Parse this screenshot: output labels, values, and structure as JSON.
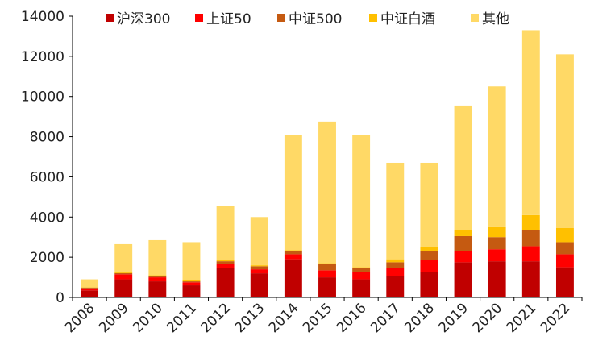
{
  "chart_data": {
    "type": "bar",
    "stacked": true,
    "title": "",
    "xlabel": "",
    "ylabel": "",
    "ylim": [
      0,
      14000
    ],
    "yticks": [
      0,
      2000,
      4000,
      6000,
      8000,
      10000,
      12000,
      14000
    ],
    "grid": false,
    "legend_position": "top",
    "categories": [
      "2008",
      "2009",
      "2010",
      "2011",
      "2012",
      "2013",
      "2014",
      "2015",
      "2016",
      "2017",
      "2018",
      "2019",
      "2020",
      "2021",
      "2022"
    ],
    "series": [
      {
        "name": "沪深300",
        "color": "#c00000",
        "values": [
          350,
          900,
          800,
          600,
          1450,
          1200,
          1900,
          1000,
          900,
          1050,
          1250,
          1750,
          1800,
          1800,
          1500
        ]
      },
      {
        "name": "上证50",
        "color": "#ff0000",
        "values": [
          100,
          250,
          200,
          150,
          200,
          200,
          250,
          350,
          350,
          400,
          600,
          550,
          600,
          750,
          650
        ]
      },
      {
        "name": "中证500",
        "color": "#c55a11",
        "values": [
          40,
          60,
          50,
          50,
          150,
          150,
          150,
          300,
          200,
          300,
          450,
          750,
          600,
          800,
          600
        ]
      },
      {
        "name": "中证白酒",
        "color": "#ffc000",
        "values": [
          10,
          40,
          50,
          50,
          50,
          50,
          50,
          50,
          50,
          150,
          200,
          300,
          500,
          750,
          700
        ]
      },
      {
        "name": "其他",
        "color": "#ffd966",
        "values": [
          400,
          1400,
          1750,
          1900,
          2700,
          2400,
          5750,
          7050,
          6600,
          4800,
          4200,
          6200,
          7000,
          9200,
          8650
        ]
      }
    ]
  }
}
